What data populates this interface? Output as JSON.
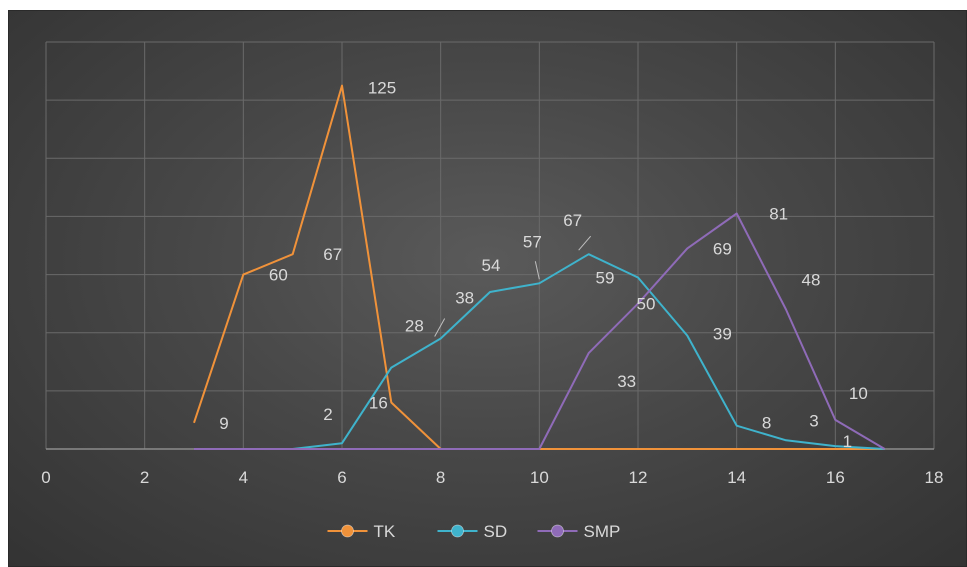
{
  "chart_data": {
    "type": "scatter",
    "title": "",
    "xlabel": "",
    "ylabel": "",
    "xlim": [
      0,
      18
    ],
    "ylim": [
      0,
      140
    ],
    "x_ticks": [
      "0",
      "2",
      "4",
      "6",
      "8",
      "10",
      "12",
      "14",
      "16",
      "18"
    ],
    "y_tick_labels_shown": false,
    "grid": true,
    "legend_position": "bottom",
    "series": [
      {
        "name": "TK",
        "color": "#f0923a",
        "x": [
          3,
          4,
          5,
          6,
          7,
          8,
          9,
          10,
          11,
          12,
          13,
          14,
          15,
          16,
          17
        ],
        "y": [
          9,
          60,
          67,
          125,
          16,
          0,
          0,
          0,
          0,
          0,
          0,
          0,
          0,
          0,
          0
        ],
        "labels": [
          "9",
          "60",
          "67",
          "125",
          "16",
          "",
          "",
          "",
          "",
          "",
          "",
          "",
          "",
          "",
          ""
        ]
      },
      {
        "name": "SD",
        "color": "#3fb3cc",
        "x": [
          3,
          4,
          5,
          6,
          7,
          8,
          9,
          10,
          11,
          12,
          13,
          14,
          15,
          16,
          17
        ],
        "y": [
          0,
          0,
          0,
          2,
          28,
          38,
          54,
          57,
          67,
          59,
          39,
          8,
          3,
          1,
          0
        ],
        "labels": [
          "",
          "",
          "",
          "2",
          "28",
          "38",
          "54",
          "57",
          "67",
          "59",
          "39",
          "8",
          "3",
          "1",
          ""
        ]
      },
      {
        "name": "SMP",
        "color": "#8f6bb8",
        "x": [
          3,
          4,
          5,
          6,
          7,
          8,
          9,
          10,
          11,
          12,
          13,
          14,
          15,
          16,
          17
        ],
        "y": [
          0,
          0,
          0,
          0,
          0,
          0,
          0,
          0,
          33,
          50,
          69,
          81,
          48,
          10,
          0
        ],
        "labels": [
          "",
          "",
          "",
          "",
          "",
          "",
          "",
          "",
          "33",
          "50",
          "69",
          "81",
          "48",
          "10",
          ""
        ]
      }
    ]
  }
}
